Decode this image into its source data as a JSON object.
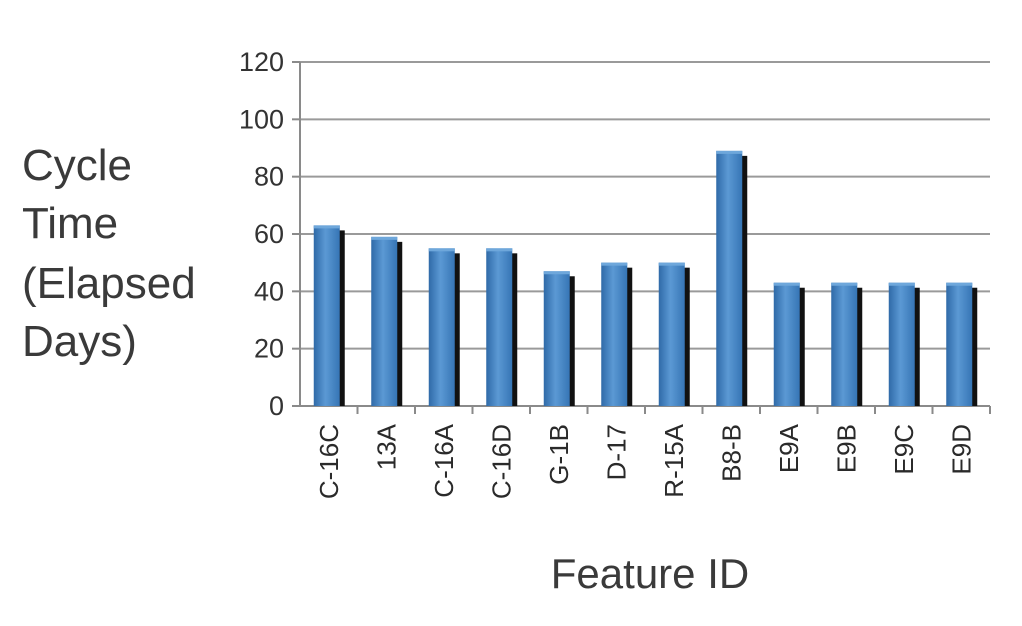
{
  "chart_data": {
    "type": "bar",
    "title": "",
    "xlabel": "Feature ID",
    "ylabel_lines": [
      "Cycle",
      "Time",
      "(Elapsed",
      "Days)"
    ],
    "categories": [
      "C-16C",
      "13A",
      "C-16A",
      "C-16D",
      "G-1B",
      "D-17",
      "R-15A",
      "B8-B",
      "E9A",
      "E9B",
      "E9C",
      "E9D"
    ],
    "values": [
      63,
      59,
      55,
      55,
      47,
      50,
      50,
      89,
      43,
      43,
      43,
      43
    ],
    "ylim": [
      0,
      120
    ],
    "yticks": [
      0,
      20,
      40,
      60,
      80,
      100,
      120
    ],
    "grid": true,
    "legend": "none",
    "colors": {
      "bar": "#3f7fc0",
      "bar_light": "#6ea7db",
      "bar_shadow": "#111111",
      "grid": "#9a9a9a",
      "axis": "#8a8a8a"
    }
  }
}
